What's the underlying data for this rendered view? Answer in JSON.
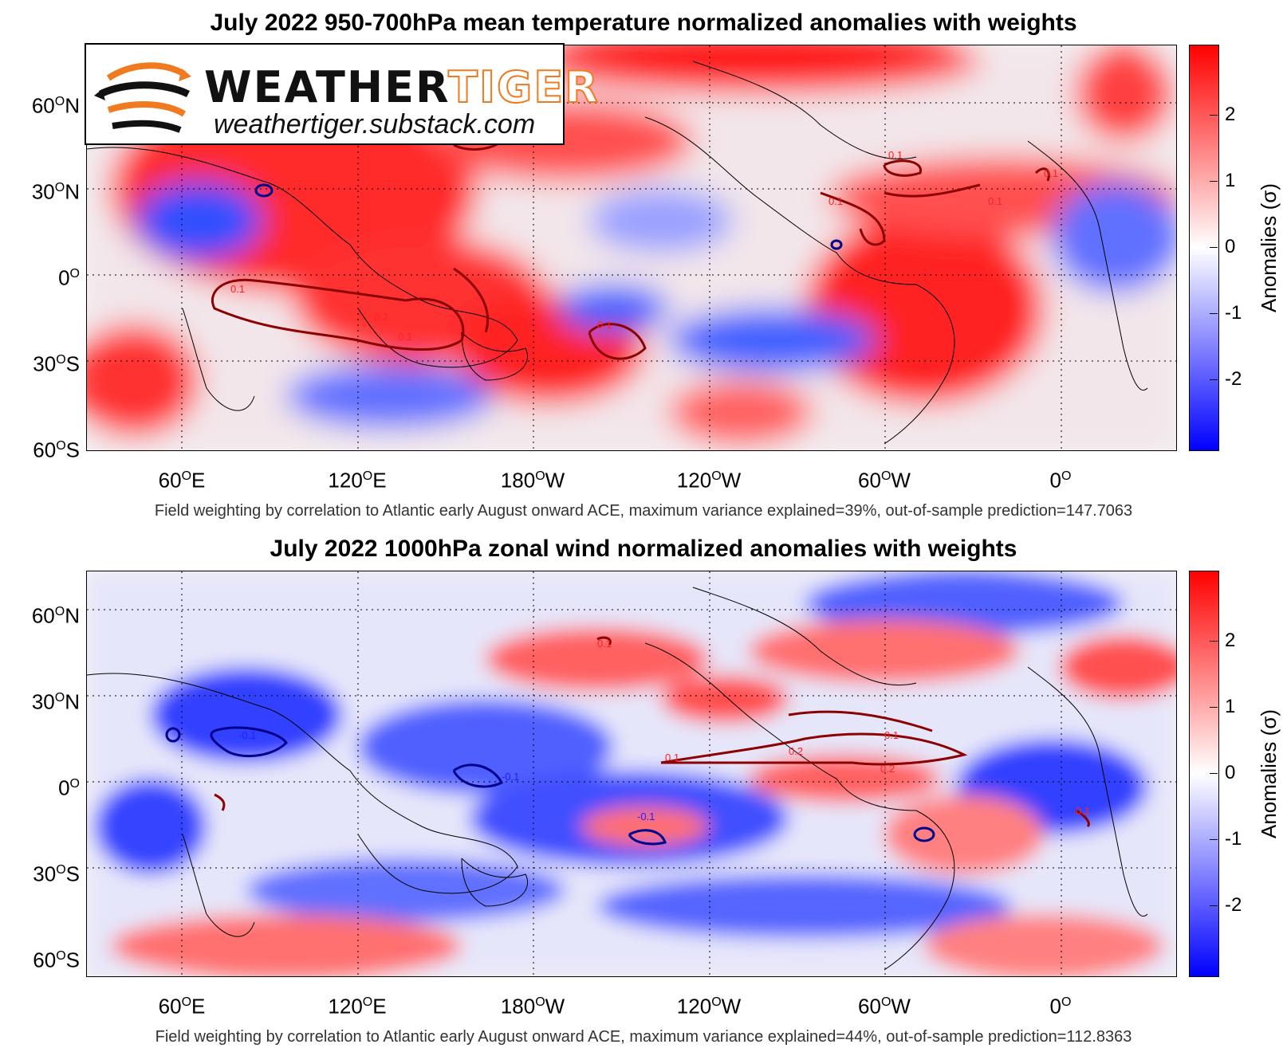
{
  "panels": [
    {
      "title": "July 2022 950-700hPa mean temperature normalized anomalies with weights",
      "caption": "Field weighting by correlation to Atlantic early August onward ACE, maximum variance explained=39%, out-of-sample prediction=147.7063",
      "contour_labels": [
        "0.1",
        "0.2",
        "0.1",
        "0.1",
        "0.1",
        "0.1",
        "0.1",
        "0.1"
      ]
    },
    {
      "title": "July 2022 1000hPa zonal wind normalized anomalies with weights",
      "caption": "Field weighting by correlation to Atlantic early August onward ACE, maximum variance explained=44%, out-of-sample prediction=112.8363",
      "contour_labels": [
        "-0.1",
        "-0.1",
        "-0.1",
        "0.1",
        "0.1",
        "0.1",
        "0.2",
        "0.2",
        "0.1"
      ]
    }
  ],
  "axes": {
    "lat_labels": [
      {
        "base": "60",
        "sup": "O",
        "hem": "N"
      },
      {
        "base": "30",
        "sup": "O",
        "hem": "N"
      },
      {
        "base": "0",
        "sup": "O",
        "hem": ""
      },
      {
        "base": "30",
        "sup": "O",
        "hem": "S"
      },
      {
        "base": "60",
        "sup": "O",
        "hem": "S"
      }
    ],
    "lon_labels": [
      {
        "base": "60",
        "sup": "O",
        "hem": "E"
      },
      {
        "base": "120",
        "sup": "O",
        "hem": "E"
      },
      {
        "base": "180",
        "sup": "O",
        "hem": "W"
      },
      {
        "base": "120",
        "sup": "O",
        "hem": "W"
      },
      {
        "base": "60",
        "sup": "O",
        "hem": "W"
      },
      {
        "base": "0",
        "sup": "O",
        "hem": ""
      }
    ]
  },
  "colorbar": {
    "ticks": [
      "2",
      "1",
      "0",
      "-1",
      "-2"
    ],
    "label": "Anomalies (σ)",
    "colors": {
      "max": "#ff0000",
      "mid": "#ffffff",
      "min": "#0000ff"
    }
  },
  "logo": {
    "word_a": "WEATHER",
    "word_b": "TIGER",
    "url": "weathertiger.substack.com",
    "accent": "#f07a20"
  },
  "contour_colors": {
    "positive": "#8b0000",
    "negative": "#00008b"
  }
}
